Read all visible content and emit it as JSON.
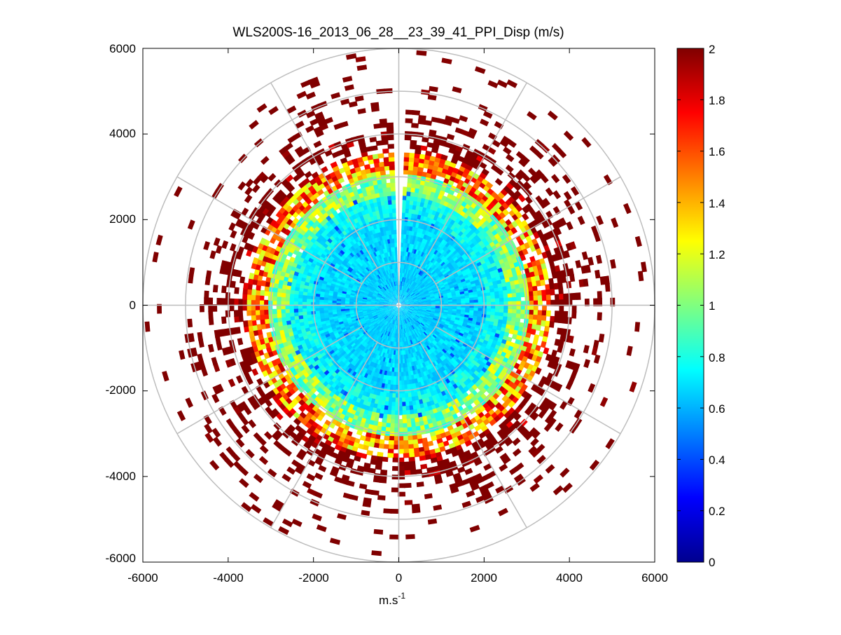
{
  "chart_data": {
    "type": "heatmap",
    "subtype": "polar-ppi",
    "title": "WLS200S-16_2013_06_28__23_39_41_PPI_Disp (m/s)",
    "xlabel_base": "m.s",
    "xlabel_sup": "-1",
    "ylabel": "",
    "xlim": [
      -6000,
      6000
    ],
    "ylim": [
      -6000,
      6000
    ],
    "xticks": [
      -6000,
      -4000,
      -2000,
      0,
      2000,
      4000,
      6000
    ],
    "yticks": [
      -6000,
      -4000,
      -2000,
      0,
      2000,
      4000,
      6000
    ],
    "xtick_labels": [
      "-6000",
      "-4000",
      "-2000",
      "0",
      "2000",
      "4000",
      "6000"
    ],
    "ytick_labels": [
      "6000",
      "4000",
      "2000",
      "0",
      "-2000",
      "-4000",
      "-6000"
    ],
    "polar_grid": {
      "rings": [
        1000,
        2000,
        3000,
        4000,
        5000,
        6000
      ],
      "spokes_deg": [
        0,
        30,
        60,
        90,
        120,
        150,
        180,
        210,
        240,
        270,
        300,
        330
      ]
    },
    "data_gap_azimuth_deg": [
      -3,
      0
    ],
    "colorbar": {
      "min": 0,
      "max": 2,
      "ticks": [
        0,
        0.2,
        0.4,
        0.6,
        0.8,
        1,
        1.2,
        1.4,
        1.6,
        1.8,
        2
      ],
      "tick_labels": [
        "0",
        "0.2",
        "0.4",
        "0.6",
        "0.8",
        "1",
        "1.2",
        "1.4",
        "1.6",
        "1.8",
        "2"
      ],
      "colormap": "jet"
    },
    "radial_profile": [
      {
        "range_max": 1000,
        "mean": 0.66,
        "spread": 0.06,
        "coverage": 1.0
      },
      {
        "range_max": 2000,
        "mean": 0.68,
        "spread": 0.08,
        "coverage": 1.0
      },
      {
        "range_max": 2500,
        "mean": 0.76,
        "spread": 0.12,
        "coverage": 1.0
      },
      {
        "range_max": 3000,
        "mean": 1.02,
        "spread": 0.25,
        "coverage": 0.97
      },
      {
        "range_max": 3500,
        "mean": 1.5,
        "spread": 0.4,
        "coverage": 0.8
      },
      {
        "range_max": 4000,
        "mean": 1.92,
        "spread": 0.15,
        "coverage": 0.5
      },
      {
        "range_max": 4500,
        "mean": 2.0,
        "spread": 0.05,
        "coverage": 0.28
      },
      {
        "range_max": 5000,
        "mean": 2.0,
        "spread": 0.05,
        "coverage": 0.14
      },
      {
        "range_max": 5900,
        "mean": 2.0,
        "spread": 0.05,
        "coverage": 0.06
      }
    ]
  }
}
